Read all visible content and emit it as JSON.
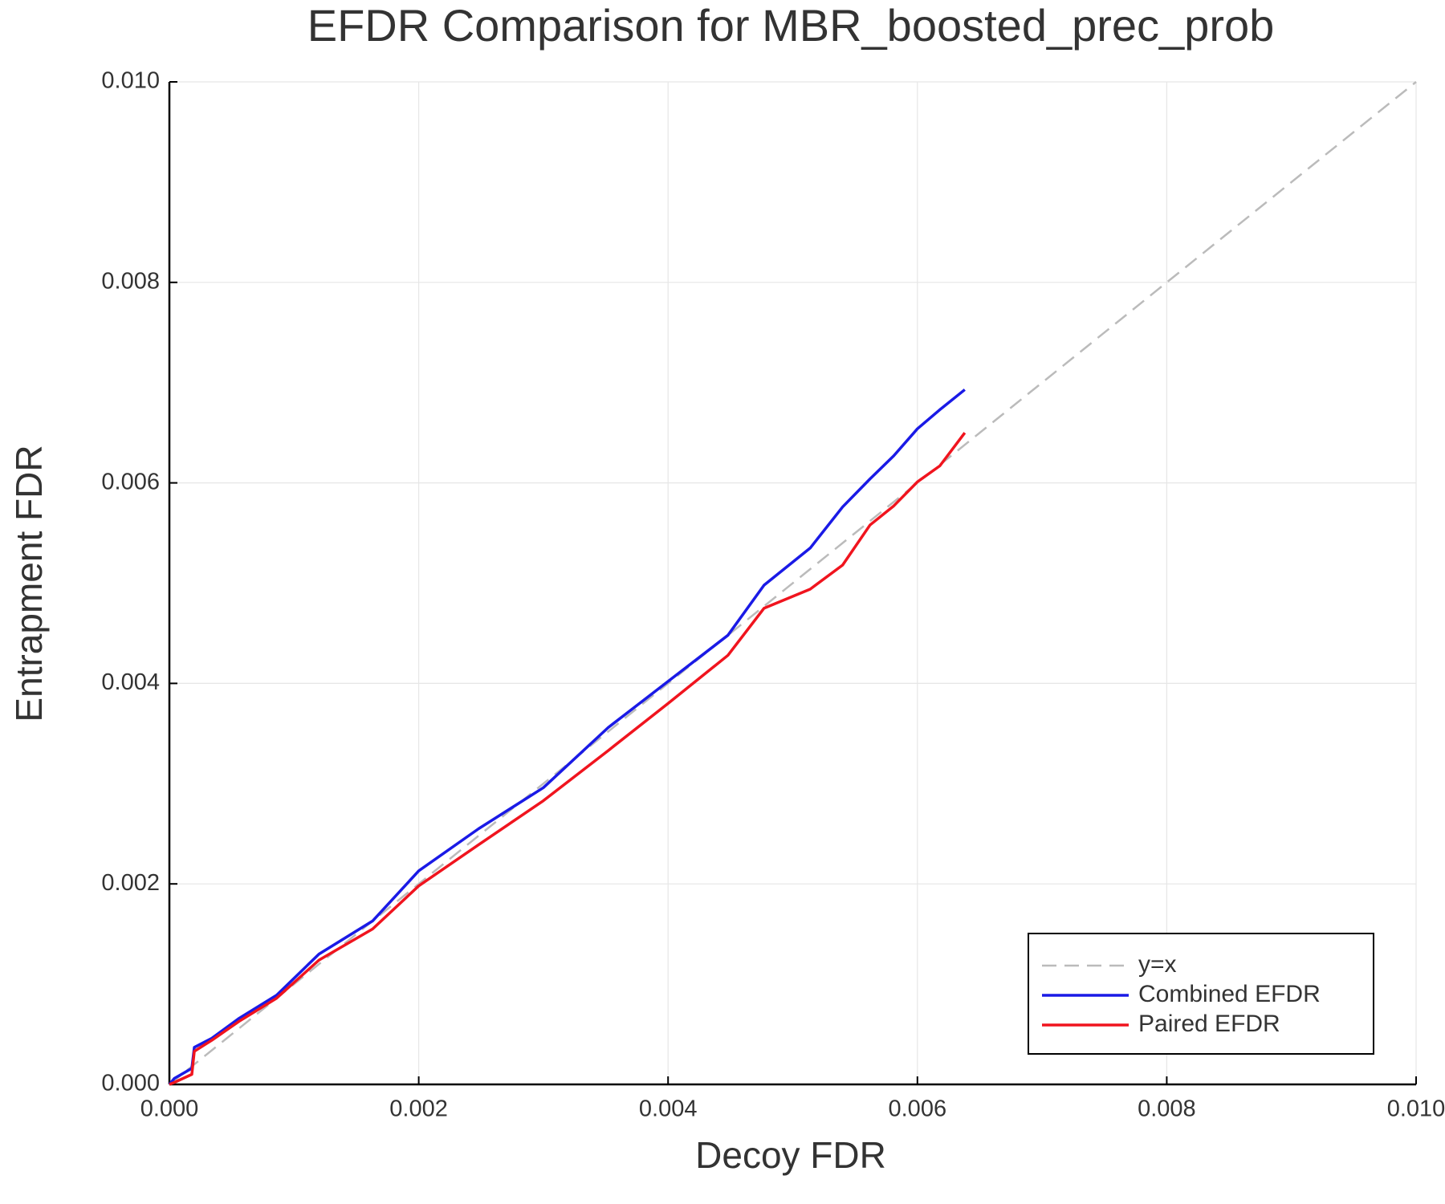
{
  "chart_data": {
    "type": "line",
    "title": "EFDR Comparison for MBR_boosted_prec_prob",
    "xlabel": "Decoy FDR",
    "ylabel": "Entrapment FDR",
    "xlim": [
      0,
      0.01
    ],
    "ylim": [
      0,
      0.01
    ],
    "xticks": [
      {
        "value": 0,
        "label": "0.000"
      },
      {
        "value": 0.002,
        "label": "0.002"
      },
      {
        "value": 0.004,
        "label": "0.004"
      },
      {
        "value": 0.006,
        "label": "0.006"
      },
      {
        "value": 0.008,
        "label": "0.008"
      },
      {
        "value": 0.01,
        "label": "0.010"
      }
    ],
    "yticks": [
      {
        "value": 0,
        "label": "0.000"
      },
      {
        "value": 0.002,
        "label": "0.002"
      },
      {
        "value": 0.004,
        "label": "0.004"
      },
      {
        "value": 0.006,
        "label": "0.006"
      },
      {
        "value": 0.008,
        "label": "0.008"
      },
      {
        "value": 0.01,
        "label": "0.010"
      }
    ],
    "grid": true,
    "legend": "lower right",
    "x": [
      0,
      4e-05,
      0.00018,
      0.0002,
      0.00034,
      0.00056,
      0.00086,
      0.0012,
      0.00163,
      0.002,
      0.00248,
      0.003,
      0.00352,
      0.004,
      0.00448,
      0.00477,
      0.00514,
      0.0054,
      0.00562,
      0.00581,
      0.006,
      0.00618,
      0.00638
    ],
    "series": [
      {
        "name": "y=x",
        "color": "#bbbbbb",
        "dashed": true,
        "x": [
          0,
          0.01
        ],
        "values": [
          0,
          0.01
        ]
      },
      {
        "name": "Combined EFDR",
        "color": "#1a1ae6",
        "values": [
          0,
          6e-05,
          0.00016,
          0.00037,
          0.00046,
          0.00066,
          0.00089,
          0.0013,
          0.00163,
          0.00213,
          0.00255,
          0.00296,
          0.00356,
          0.00402,
          0.00448,
          0.00498,
          0.00535,
          0.00576,
          0.00604,
          0.00627,
          0.00654,
          0.00673,
          0.00693
        ]
      },
      {
        "name": "Paired EFDR",
        "color": "#f0141e",
        "values": [
          0,
          2e-05,
          0.0001,
          0.00033,
          0.00044,
          0.00063,
          0.00086,
          0.00124,
          0.00155,
          0.00198,
          0.00239,
          0.00283,
          0.00333,
          0.0038,
          0.00428,
          0.00475,
          0.00494,
          0.00518,
          0.00558,
          0.00577,
          0.00601,
          0.00617,
          0.0065
        ]
      }
    ]
  }
}
